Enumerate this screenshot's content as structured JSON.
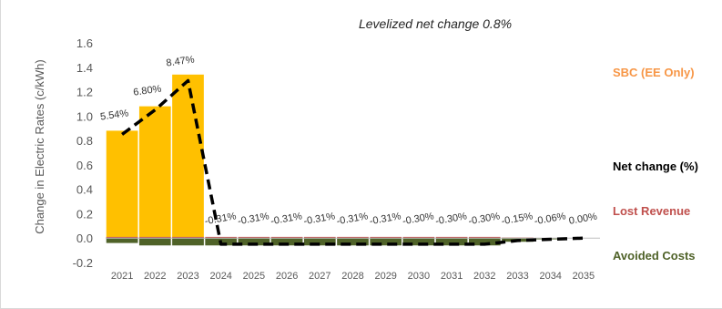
{
  "chart_data": {
    "type": "bar",
    "title": "Levelized net change 0.8%",
    "ylabel": "Change in Electric Rates (c/kWh)",
    "xlabel": "",
    "ylim": [
      -0.2,
      1.6
    ],
    "yticks": [
      "1.6",
      "1.4",
      "1.2",
      "1.0",
      "0.8",
      "0.6",
      "0.4",
      "0.2",
      "0.0",
      "-0.2"
    ],
    "ytick_values": [
      1.6,
      1.4,
      1.2,
      1.0,
      0.8,
      0.6,
      0.4,
      0.2,
      0.0,
      -0.2
    ],
    "categories": [
      "2021",
      "2022",
      "2023",
      "2024",
      "2025",
      "2026",
      "2027",
      "2028",
      "2029",
      "2030",
      "2031",
      "2032",
      "2033",
      "2034",
      "2035"
    ],
    "grid": false,
    "legend_placement": "right",
    "series": [
      {
        "name": "SBC (EE Only)",
        "kind": "bar",
        "color": "#FFC000",
        "values": [
          0.88,
          1.08,
          1.34,
          0,
          0,
          0,
          0,
          0,
          0,
          0,
          0,
          0,
          0,
          0,
          0
        ]
      },
      {
        "name": "Lost Revenue",
        "kind": "bar",
        "color": "#C0504D",
        "values": [
          0.01,
          0.01,
          0.01,
          0.01,
          0.01,
          0.01,
          0.01,
          0.01,
          0.01,
          0.01,
          0.01,
          0.01,
          0.005,
          0.002,
          0
        ]
      },
      {
        "name": "Avoided Costs",
        "kind": "bar",
        "color": "#4F6228",
        "values": [
          -0.04,
          -0.06,
          -0.06,
          -0.06,
          -0.06,
          -0.06,
          -0.06,
          -0.06,
          -0.06,
          -0.06,
          -0.06,
          -0.06,
          -0.03,
          -0.01,
          0
        ]
      },
      {
        "name": "Net change (%)",
        "kind": "line",
        "color": "#000000",
        "values": [
          0.85,
          1.05,
          1.29,
          -0.05,
          -0.05,
          -0.05,
          -0.05,
          -0.05,
          -0.05,
          -0.05,
          -0.05,
          -0.05,
          -0.02,
          -0.01,
          0.0
        ],
        "labels": [
          "5.54%",
          "6.80%",
          "8.47%",
          "-0.31%",
          "-0.31%",
          "-0.31%",
          "-0.31%",
          "-0.31%",
          "-0.31%",
          "-0.30%",
          "-0.30%",
          "-0.30%",
          "-0.15%",
          "-0.06%",
          "0.00%"
        ]
      }
    ]
  }
}
